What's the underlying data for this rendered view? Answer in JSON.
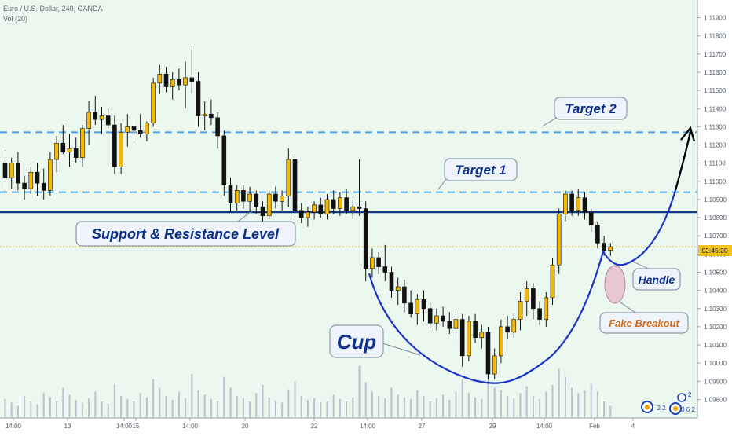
{
  "header": {
    "symbol_line": "Euro / U.S. Dollar, 240, OANDA",
    "volume_label": "Vol (20)"
  },
  "colors": {
    "background": "#eaf8ef",
    "bull_candle": "#f5b800",
    "bear_candle": "#111111",
    "volume_bar": "#b9c2ce",
    "support_line": "#103a8a",
    "target_lines": "#4da3e6",
    "cup_curve": "#1f32c8",
    "current_price_line": "#f0c21a"
  },
  "chart_data": {
    "type": "candlestick",
    "y_axis_ticks": [
      "1.11900",
      "1.11800",
      "1.11700",
      "1.11600",
      "1.11500",
      "1.11400",
      "1.11300",
      "1.11200",
      "1.11100",
      "1.11000",
      "1.10900",
      "1.10800",
      "1.10700",
      "1.10600",
      "1.10500",
      "1.10400",
      "1.10300",
      "1.10200",
      "1.10100",
      "1.10000",
      "1.09900",
      "1.09800"
    ],
    "ylim": [
      1.0975,
      1.1195
    ],
    "x_axis_ticks": [
      "14:00",
      "13",
      "14:00",
      "15",
      "14:00",
      "20",
      "22",
      "14:00",
      "27",
      "29",
      "14:00",
      "Feb",
      "4"
    ],
    "current_price_label": "02:45:20",
    "levels": {
      "support_resistance": 1.1083,
      "target_1": 1.1094,
      "target_2": 1.1127
    },
    "candles": [
      {
        "o": 1.111,
        "h": 1.1117,
        "l": 1.1094,
        "c": 1.1102
      },
      {
        "o": 1.1102,
        "h": 1.1113,
        "l": 1.1096,
        "c": 1.111
      },
      {
        "o": 1.111,
        "h": 1.1116,
        "l": 1.1095,
        "c": 1.1099
      },
      {
        "o": 1.1099,
        "h": 1.1103,
        "l": 1.109,
        "c": 1.1096
      },
      {
        "o": 1.1096,
        "h": 1.1108,
        "l": 1.1093,
        "c": 1.1105
      },
      {
        "o": 1.1105,
        "h": 1.111,
        "l": 1.1092,
        "c": 1.1099
      },
      {
        "o": 1.1099,
        "h": 1.1107,
        "l": 1.109,
        "c": 1.1095
      },
      {
        "o": 1.1095,
        "h": 1.1116,
        "l": 1.1092,
        "c": 1.1112
      },
      {
        "o": 1.1112,
        "h": 1.1125,
        "l": 1.1105,
        "c": 1.1121
      },
      {
        "o": 1.1121,
        "h": 1.1131,
        "l": 1.1115,
        "c": 1.1116
      },
      {
        "o": 1.1116,
        "h": 1.1126,
        "l": 1.1108,
        "c": 1.1118
      },
      {
        "o": 1.1118,
        "h": 1.1124,
        "l": 1.111,
        "c": 1.1113
      },
      {
        "o": 1.1113,
        "h": 1.1131,
        "l": 1.1108,
        "c": 1.1129
      },
      {
        "o": 1.1129,
        "h": 1.1144,
        "l": 1.112,
        "c": 1.1138
      },
      {
        "o": 1.1138,
        "h": 1.1147,
        "l": 1.1131,
        "c": 1.1134
      },
      {
        "o": 1.1134,
        "h": 1.1141,
        "l": 1.1126,
        "c": 1.1136
      },
      {
        "o": 1.1136,
        "h": 1.114,
        "l": 1.1129,
        "c": 1.1131
      },
      {
        "o": 1.1131,
        "h": 1.1136,
        "l": 1.1104,
        "c": 1.1108
      },
      {
        "o": 1.1108,
        "h": 1.1132,
        "l": 1.1104,
        "c": 1.1127
      },
      {
        "o": 1.1127,
        "h": 1.1137,
        "l": 1.1119,
        "c": 1.113
      },
      {
        "o": 1.113,
        "h": 1.1134,
        "l": 1.1123,
        "c": 1.1128
      },
      {
        "o": 1.1128,
        "h": 1.1137,
        "l": 1.1124,
        "c": 1.1126
      },
      {
        "o": 1.1126,
        "h": 1.1133,
        "l": 1.1122,
        "c": 1.1132
      },
      {
        "o": 1.1132,
        "h": 1.1157,
        "l": 1.113,
        "c": 1.1154
      },
      {
        "o": 1.1154,
        "h": 1.1164,
        "l": 1.1148,
        "c": 1.1159
      },
      {
        "o": 1.1159,
        "h": 1.1163,
        "l": 1.1149,
        "c": 1.1152
      },
      {
        "o": 1.1152,
        "h": 1.116,
        "l": 1.1145,
        "c": 1.1156
      },
      {
        "o": 1.1156,
        "h": 1.1162,
        "l": 1.115,
        "c": 1.1153
      },
      {
        "o": 1.1153,
        "h": 1.1166,
        "l": 1.114,
        "c": 1.1157
      },
      {
        "o": 1.1157,
        "h": 1.1173,
        "l": 1.1148,
        "c": 1.1155
      },
      {
        "o": 1.1155,
        "h": 1.116,
        "l": 1.113,
        "c": 1.1136
      },
      {
        "o": 1.1136,
        "h": 1.1144,
        "l": 1.1128,
        "c": 1.1137
      },
      {
        "o": 1.1137,
        "h": 1.1145,
        "l": 1.1131,
        "c": 1.1135
      },
      {
        "o": 1.1135,
        "h": 1.1138,
        "l": 1.1118,
        "c": 1.1125
      },
      {
        "o": 1.1125,
        "h": 1.1128,
        "l": 1.1092,
        "c": 1.1098
      },
      {
        "o": 1.1098,
        "h": 1.1102,
        "l": 1.1083,
        "c": 1.1088
      },
      {
        "o": 1.1088,
        "h": 1.1098,
        "l": 1.1084,
        "c": 1.1095
      },
      {
        "o": 1.1095,
        "h": 1.1098,
        "l": 1.1085,
        "c": 1.1089
      },
      {
        "o": 1.1089,
        "h": 1.1097,
        "l": 1.1083,
        "c": 1.1093
      },
      {
        "o": 1.1093,
        "h": 1.1095,
        "l": 1.1082,
        "c": 1.1086
      },
      {
        "o": 1.1086,
        "h": 1.1089,
        "l": 1.1077,
        "c": 1.1081
      },
      {
        "o": 1.1081,
        "h": 1.1095,
        "l": 1.1079,
        "c": 1.1093
      },
      {
        "o": 1.1093,
        "h": 1.1097,
        "l": 1.1085,
        "c": 1.1089
      },
      {
        "o": 1.1089,
        "h": 1.1095,
        "l": 1.1084,
        "c": 1.1092
      },
      {
        "o": 1.1092,
        "h": 1.1118,
        "l": 1.1086,
        "c": 1.1112
      },
      {
        "o": 1.1112,
        "h": 1.1115,
        "l": 1.108,
        "c": 1.1084
      },
      {
        "o": 1.1084,
        "h": 1.1088,
        "l": 1.1077,
        "c": 1.108
      },
      {
        "o": 1.108,
        "h": 1.1086,
        "l": 1.1075,
        "c": 1.1083
      },
      {
        "o": 1.1083,
        "h": 1.1089,
        "l": 1.1079,
        "c": 1.1087
      },
      {
        "o": 1.1087,
        "h": 1.1091,
        "l": 1.108,
        "c": 1.1082
      },
      {
        "o": 1.1082,
        "h": 1.1093,
        "l": 1.1079,
        "c": 1.109
      },
      {
        "o": 1.109,
        "h": 1.1095,
        "l": 1.1082,
        "c": 1.1085
      },
      {
        "o": 1.1085,
        "h": 1.1094,
        "l": 1.1081,
        "c": 1.1091
      },
      {
        "o": 1.1091,
        "h": 1.1096,
        "l": 1.1082,
        "c": 1.1084
      },
      {
        "o": 1.1084,
        "h": 1.109,
        "l": 1.1079,
        "c": 1.1086
      },
      {
        "o": 1.1086,
        "h": 1.1112,
        "l": 1.1081,
        "c": 1.1085
      },
      {
        "o": 1.1085,
        "h": 1.1089,
        "l": 1.1045,
        "c": 1.1052
      },
      {
        "o": 1.1052,
        "h": 1.1063,
        "l": 1.1047,
        "c": 1.1058
      },
      {
        "o": 1.1058,
        "h": 1.1061,
        "l": 1.1049,
        "c": 1.1053
      },
      {
        "o": 1.1053,
        "h": 1.1065,
        "l": 1.1045,
        "c": 1.105
      },
      {
        "o": 1.105,
        "h": 1.1053,
        "l": 1.1036,
        "c": 1.104
      },
      {
        "o": 1.104,
        "h": 1.1047,
        "l": 1.1032,
        "c": 1.1042
      },
      {
        "o": 1.1042,
        "h": 1.1046,
        "l": 1.1028,
        "c": 1.1033
      },
      {
        "o": 1.1033,
        "h": 1.104,
        "l": 1.1025,
        "c": 1.1027
      },
      {
        "o": 1.1027,
        "h": 1.1038,
        "l": 1.1021,
        "c": 1.1035
      },
      {
        "o": 1.1035,
        "h": 1.104,
        "l": 1.1023,
        "c": 1.103
      },
      {
        "o": 1.103,
        "h": 1.1033,
        "l": 1.1019,
        "c": 1.1022
      },
      {
        "o": 1.1022,
        "h": 1.103,
        "l": 1.1018,
        "c": 1.1026
      },
      {
        "o": 1.1026,
        "h": 1.1031,
        "l": 1.102,
        "c": 1.1023
      },
      {
        "o": 1.1023,
        "h": 1.1028,
        "l": 1.1016,
        "c": 1.1019
      },
      {
        "o": 1.1019,
        "h": 1.1028,
        "l": 1.1013,
        "c": 1.1024
      },
      {
        "o": 1.1024,
        "h": 1.1027,
        "l": 1.0998,
        "c": 1.1004
      },
      {
        "o": 1.1004,
        "h": 1.1026,
        "l": 1.1001,
        "c": 1.1023
      },
      {
        "o": 1.1023,
        "h": 1.1027,
        "l": 1.1011,
        "c": 1.1014
      },
      {
        "o": 1.1014,
        "h": 1.1021,
        "l": 1.1008,
        "c": 1.1017
      },
      {
        "o": 1.1017,
        "h": 1.102,
        "l": 1.0991,
        "c": 1.0994
      },
      {
        "o": 1.0994,
        "h": 1.1008,
        "l": 1.0991,
        "c": 1.1004
      },
      {
        "o": 1.1004,
        "h": 1.1024,
        "l": 1.1,
        "c": 1.102
      },
      {
        "o": 1.102,
        "h": 1.1026,
        "l": 1.1013,
        "c": 1.1017
      },
      {
        "o": 1.1017,
        "h": 1.1027,
        "l": 1.1014,
        "c": 1.1024
      },
      {
        "o": 1.1024,
        "h": 1.1039,
        "l": 1.1018,
        "c": 1.1034
      },
      {
        "o": 1.1034,
        "h": 1.1045,
        "l": 1.1026,
        "c": 1.1041
      },
      {
        "o": 1.1041,
        "h": 1.1044,
        "l": 1.1024,
        "c": 1.103
      },
      {
        "o": 1.103,
        "h": 1.1034,
        "l": 1.1021,
        "c": 1.1024
      },
      {
        "o": 1.1024,
        "h": 1.1039,
        "l": 1.102,
        "c": 1.1036
      },
      {
        "o": 1.1036,
        "h": 1.1058,
        "l": 1.1032,
        "c": 1.1054
      },
      {
        "o": 1.1054,
        "h": 1.1085,
        "l": 1.1049,
        "c": 1.1082
      },
      {
        "o": 1.1082,
        "h": 1.1095,
        "l": 1.1078,
        "c": 1.1093
      },
      {
        "o": 1.1093,
        "h": 1.1095,
        "l": 1.1081,
        "c": 1.1084
      },
      {
        "o": 1.1084,
        "h": 1.1096,
        "l": 1.1081,
        "c": 1.1091
      },
      {
        "o": 1.1091,
        "h": 1.1094,
        "l": 1.1079,
        "c": 1.1083
      },
      {
        "o": 1.1083,
        "h": 1.1085,
        "l": 1.1072,
        "c": 1.1076
      },
      {
        "o": 1.1076,
        "h": 1.1078,
        "l": 1.1063,
        "c": 1.1066
      },
      {
        "o": 1.1066,
        "h": 1.107,
        "l": 1.1059,
        "c": 1.1062
      },
      {
        "o": 1.1062,
        "h": 1.1066,
        "l": 1.1059,
        "c": 1.1064
      }
    ],
    "volumes": [
      0.35,
      0.28,
      0.22,
      0.4,
      0.3,
      0.25,
      0.45,
      0.38,
      0.3,
      0.55,
      0.42,
      0.33,
      0.28,
      0.36,
      0.48,
      0.3,
      0.26,
      0.62,
      0.4,
      0.35,
      0.3,
      0.45,
      0.38,
      0.7,
      0.55,
      0.4,
      0.33,
      0.48,
      0.36,
      0.8,
      0.5,
      0.42,
      0.35,
      0.3,
      0.75,
      0.55,
      0.4,
      0.36,
      0.3,
      0.45,
      0.6,
      0.38,
      0.32,
      0.28,
      0.52,
      0.66,
      0.4,
      0.33,
      0.36,
      0.28,
      0.3,
      0.42,
      0.35,
      0.3,
      0.38,
      0.95,
      0.65,
      0.48,
      0.4,
      0.36,
      0.55,
      0.42,
      0.38,
      0.35,
      0.5,
      0.4,
      0.3,
      0.36,
      0.42,
      0.33,
      0.48,
      0.7,
      0.45,
      0.38,
      0.35,
      0.85,
      0.55,
      0.5,
      0.4,
      0.36,
      0.45,
      0.58,
      0.4,
      0.35,
      0.48,
      0.6,
      0.9,
      0.75,
      0.55,
      0.45,
      0.5,
      0.62,
      0.48,
      0.3,
      0.22
    ]
  },
  "annotations": {
    "support_resistance": "Support & Resistance Level",
    "target_1": "Target 1",
    "target_2": "Target 2",
    "cup": "Cup",
    "handle": "Handle",
    "fake_breakout": "Fake Breakout"
  },
  "badges": {
    "left": "2 2",
    "right": "3 6 2",
    "top_right": "2"
  }
}
